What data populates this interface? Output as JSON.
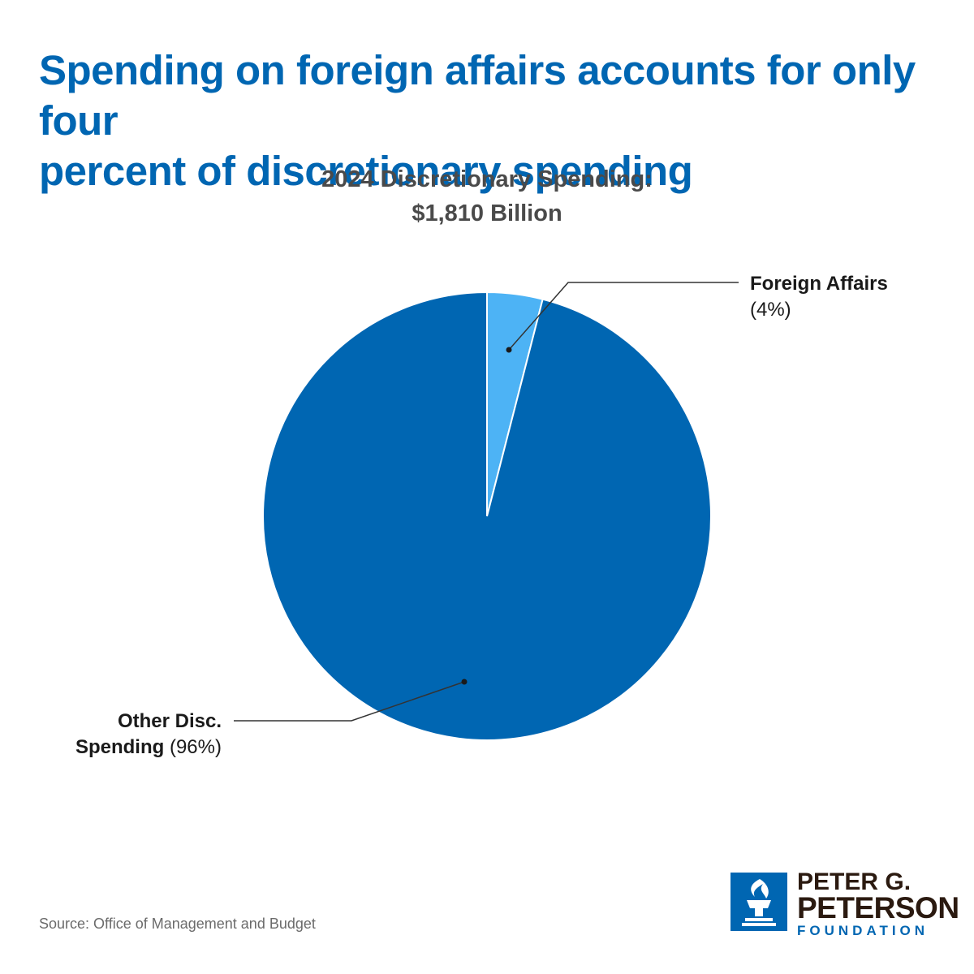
{
  "headline": {
    "line1": "Spending on foreign affairs accounts for only four",
    "line2": "percent of discretionary spending"
  },
  "chart_data": {
    "type": "pie",
    "title_line1": "2024 Discretionary Spending:",
    "title_line2": "$1,810 Billion",
    "slices": [
      {
        "name": "Foreign Affairs",
        "pct_label": "(4%)",
        "value": 4,
        "color": "#4db3f5"
      },
      {
        "name_line1": "Other Disc.",
        "name_line2": "Spending",
        "pct_label": "(96%)",
        "value": 96,
        "color": "#0066b2"
      }
    ]
  },
  "source": "Source: Office of Management and Budget",
  "logo": {
    "line1": "PETER G.",
    "line2": "PETERSON",
    "line3": "FOUNDATION",
    "icon": "torch-icon"
  },
  "colors": {
    "brand_blue": "#0066b2",
    "light_blue": "#4db3f5",
    "brown": "#2b1a10"
  }
}
